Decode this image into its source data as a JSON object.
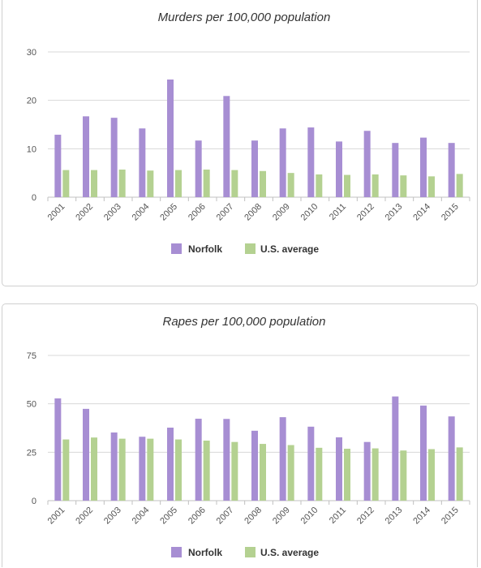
{
  "chart_data": [
    {
      "type": "bar",
      "title": "Murders per 100,000 population",
      "categories": [
        "2001",
        "2002",
        "2003",
        "2004",
        "2005",
        "2006",
        "2007",
        "2008",
        "2009",
        "2010",
        "2011",
        "2012",
        "2013",
        "2014",
        "2015"
      ],
      "series": [
        {
          "name": "Norfolk",
          "values": [
            12.9,
            16.7,
            16.4,
            14.2,
            24.3,
            11.7,
            20.9,
            11.7,
            14.2,
            14.4,
            11.5,
            13.7,
            11.2,
            12.3,
            11.2
          ],
          "color": "#a78ed3"
        },
        {
          "name": "U.S. average",
          "values": [
            5.6,
            5.6,
            5.7,
            5.5,
            5.6,
            5.7,
            5.6,
            5.4,
            5.0,
            4.7,
            4.6,
            4.7,
            4.5,
            4.3,
            4.8
          ],
          "color": "#b4d191"
        }
      ],
      "yticks": [
        0,
        10,
        20,
        30
      ],
      "ylim": [
        0,
        30
      ],
      "legend_position": "bottom-center",
      "grid": true
    },
    {
      "type": "bar",
      "title": "Rapes per 100,000 population",
      "categories": [
        "2001",
        "2002",
        "2003",
        "2004",
        "2005",
        "2006",
        "2007",
        "2008",
        "2009",
        "2010",
        "2011",
        "2012",
        "2013",
        "2014",
        "2015"
      ],
      "series": [
        {
          "name": "Norfolk",
          "values": [
            52.8,
            47.4,
            35.2,
            33.0,
            37.7,
            42.3,
            42.2,
            36.1,
            43.1,
            38.2,
            32.7,
            30.3,
            53.8,
            49.1,
            43.5
          ],
          "color": "#a78ed3"
        },
        {
          "name": "U.S. average",
          "values": [
            31.6,
            32.6,
            32.0,
            32.0,
            31.6,
            31.0,
            30.3,
            29.3,
            28.7,
            27.3,
            26.8,
            27.0,
            25.9,
            26.6,
            27.5
          ],
          "color": "#b4d191"
        }
      ],
      "yticks": [
        0,
        25,
        50,
        75
      ],
      "ylim": [
        0,
        75
      ],
      "legend_position": "bottom-center",
      "grid": true
    }
  ]
}
